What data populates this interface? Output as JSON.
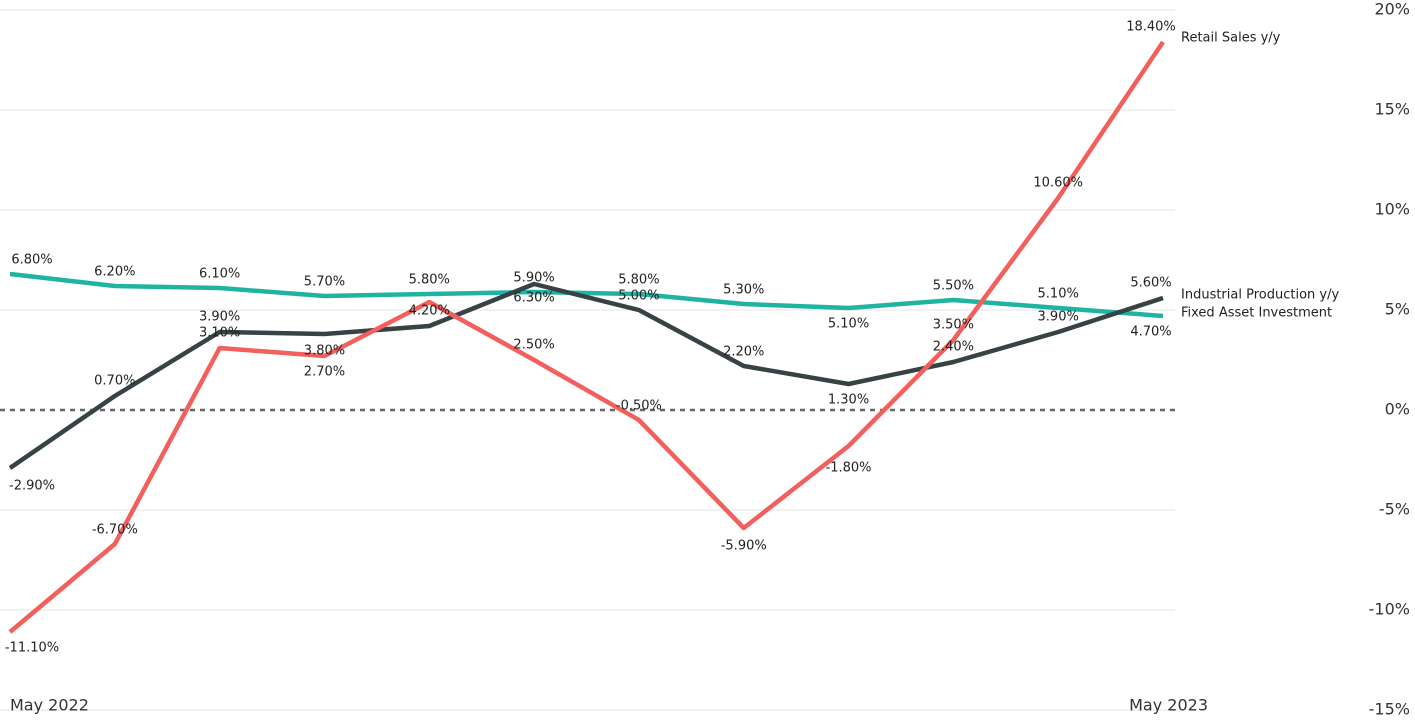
{
  "chart_data": {
    "type": "line",
    "categories": [
      "May 2022",
      null,
      null,
      null,
      null,
      null,
      null,
      null,
      null,
      null,
      null,
      "May 2023"
    ],
    "ylim": [
      -15,
      20
    ],
    "yticks": [
      {
        "value": -15,
        "label": "-15%"
      },
      {
        "value": -10,
        "label": "-10%"
      },
      {
        "value": -5,
        "label": "-5%"
      },
      {
        "value": 0,
        "label": "0%"
      },
      {
        "value": 5,
        "label": "5%"
      },
      {
        "value": 10,
        "label": "10%"
      },
      {
        "value": 15,
        "label": "15%"
      },
      {
        "value": 20,
        "label": "20%"
      }
    ],
    "grid": true,
    "series": [
      {
        "name": "Fixed Asset Investment",
        "color": "#1fb3a2",
        "values": [
          6.8,
          6.2,
          6.1,
          5.7,
          5.8,
          5.9,
          5.8,
          5.3,
          5.1,
          5.5,
          5.1,
          4.7
        ],
        "value_labels": [
          "6.80%",
          "6.20%",
          "6.10%",
          "5.70%",
          "5.80%",
          "5.90%",
          "5.80%",
          "5.30%",
          "5.10%",
          "5.50%",
          "5.10%",
          "4.70%"
        ]
      },
      {
        "name": "Industrial Production y/y",
        "color": "#374244",
        "values": [
          -2.9,
          0.7,
          3.9,
          3.8,
          4.2,
          6.3,
          5.0,
          2.2,
          1.3,
          2.4,
          3.9,
          5.6
        ],
        "value_labels": [
          "-2.90%",
          "0.70%",
          "3.90%",
          "3.80%",
          "4.20%",
          "6.30%",
          "5.00%",
          "2.20%",
          "1.30%",
          "2.40%",
          "3.90%",
          "5.60%"
        ]
      },
      {
        "name": "Retail Sales y/y",
        "color": "#f25f5c",
        "values": [
          -11.1,
          -6.7,
          3.1,
          2.7,
          5.4,
          2.5,
          -0.5,
          -5.9,
          -1.8,
          3.5,
          10.6,
          18.4
        ],
        "value_labels": [
          "-11.10%",
          "-6.70%",
          "3.10%",
          "2.70%",
          null,
          "2.50%",
          "-0.50%",
          "-5.90%",
          "-1.80%",
          "3.50%",
          "10.60%",
          "18.40%"
        ]
      }
    ]
  }
}
